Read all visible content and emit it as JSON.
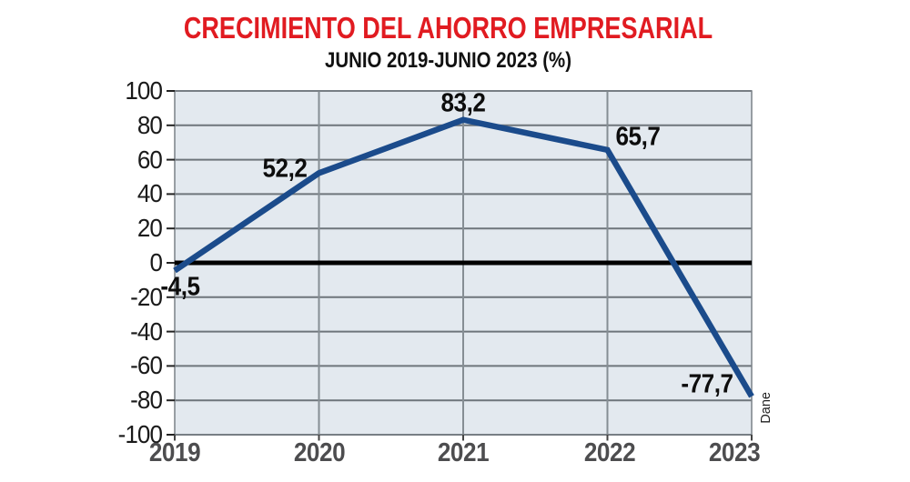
{
  "header": {
    "title": "CRECIMIENTO DEL AHORRO EMPRESARIAL",
    "subtitle": "JUNIO 2019-JUNIO 2023 (%)"
  },
  "source_label": "Dane",
  "colors": {
    "title_red": "#e11b21",
    "subtitle_black": "#111111",
    "line_blue": "#1b4b8b",
    "plot_bg": "#e3e9ef",
    "grid_h": "#6e757b",
    "grid_v": "#868e94",
    "plot_border": "#7a8187",
    "zero_line": "#000000",
    "y_tick": "#222222",
    "x_tick": "#444444",
    "x_label_gray": "#4d4d4f",
    "y_label_black": "#1a1a1a"
  },
  "chart_data": {
    "type": "line",
    "title": "CRECIMIENTO DEL AHORRO EMPRESARIAL",
    "subtitle": "JUNIO 2019-JUNIO 2023 (%)",
    "categories": [
      "2019",
      "2020",
      "2021",
      "2022",
      "2023"
    ],
    "values": [
      -4.5,
      52.2,
      83.2,
      65.7,
      -77.7
    ],
    "point_labels": [
      "-4,5",
      "52,2",
      "83,2",
      "65,7",
      "-77,7"
    ],
    "xlabel": "",
    "ylabel": "",
    "ylim": [
      -100,
      100
    ],
    "y_ticks": [
      100,
      80,
      60,
      40,
      20,
      0,
      -20,
      -40,
      -60,
      -80,
      -100
    ],
    "y_tick_labels": [
      "100",
      "80",
      "60",
      "40",
      "20",
      "0",
      "-20",
      "-40",
      "-60",
      "-80",
      "-100"
    ],
    "grid": "horizontal every 20 units; vertical at each year; thick black zero baseline",
    "legend": "none",
    "series_color": "#1b4b8b",
    "source": "Dane"
  }
}
